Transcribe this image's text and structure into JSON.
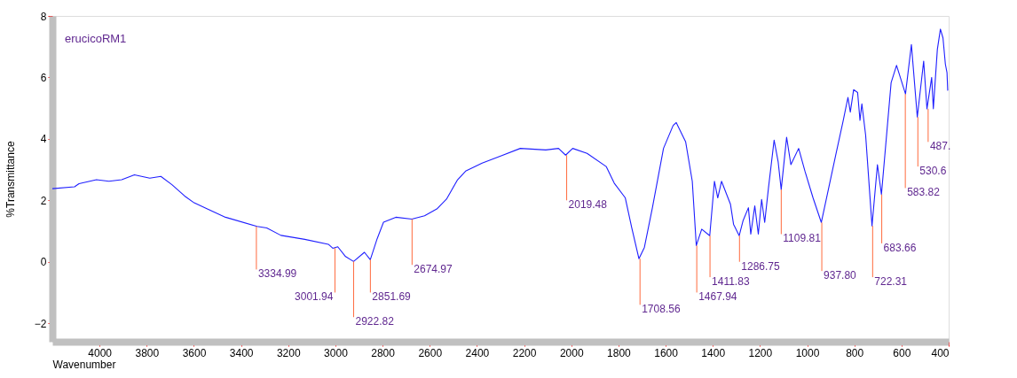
{
  "chart_data": {
    "type": "line",
    "title": "erucicoRM1",
    "xlabel": "Wavenumber",
    "ylabel": "%Transmittance",
    "xlim": [
      4200,
      400
    ],
    "xticks": [
      4000,
      3800,
      3600,
      3400,
      3200,
      3000,
      2800,
      2600,
      2400,
      2200,
      2000,
      1800,
      1600,
      1400,
      1200,
      1000,
      800,
      600,
      400
    ],
    "ylim": [
      -2.6,
      8
    ],
    "yticks": [
      -2,
      0,
      2,
      4,
      6,
      8
    ],
    "grid": false,
    "marker": "none",
    "line_style": "solid",
    "series": [
      {
        "color": "#1f1fff",
        "x": [
          4200,
          4106,
          4087,
          4013,
          3960,
          3906,
          3852,
          3787,
          3740,
          3693,
          3639,
          3599,
          3545,
          3466,
          3332,
          3291,
          3231,
          3130,
          3030,
          3011,
          2990,
          2957,
          2923,
          2877,
          2852,
          2823,
          2796,
          2744,
          2676,
          2622,
          2570,
          2529,
          2482,
          2448,
          2378,
          2297,
          2216,
          2108,
          2054,
          2024,
          1994,
          1933,
          1852,
          1818,
          1771,
          1744,
          1713,
          1690,
          1656,
          1609,
          1568,
          1555,
          1515,
          1487,
          1470,
          1447,
          1413,
          1393,
          1379,
          1363,
          1325,
          1312,
          1288,
          1272,
          1249,
          1239,
          1222,
          1207,
          1193,
          1180,
          1164,
          1140,
          1123,
          1110,
          1087,
          1069,
          1036,
          1009,
          975,
          940,
          879,
          847,
          827,
          817,
          803,
          786,
          776,
          768,
          752,
          725,
          702,
          685,
          644,
          621,
          583,
          558,
          533,
          506,
          492,
          472,
          465,
          448,
          435,
          424,
          414,
          407,
          404
        ],
        "values": [
          2.38,
          2.44,
          2.54,
          2.67,
          2.62,
          2.67,
          2.83,
          2.72,
          2.78,
          2.51,
          2.14,
          1.92,
          1.73,
          1.45,
          1.15,
          1.1,
          0.86,
          0.73,
          0.57,
          0.44,
          0.49,
          0.17,
          0.01,
          0.31,
          0.07,
          0.75,
          1.29,
          1.45,
          1.39,
          1.5,
          1.72,
          2.04,
          2.67,
          2.95,
          3.21,
          3.45,
          3.69,
          3.64,
          3.69,
          3.47,
          3.69,
          3.53,
          3.1,
          2.56,
          2.08,
          1.12,
          0.1,
          0.47,
          1.76,
          3.69,
          4.44,
          4.53,
          3.9,
          2.62,
          0.53,
          1.06,
          0.85,
          2.62,
          2.08,
          2.62,
          1.87,
          1.22,
          0.85,
          1.33,
          1.76,
          0.9,
          1.82,
          0.9,
          2.03,
          1.28,
          2.4,
          3.96,
          3.26,
          2.35,
          4.05,
          3.16,
          3.69,
          2.94,
          2.08,
          1.28,
          3.47,
          4.6,
          5.35,
          4.87,
          5.6,
          5.51,
          4.6,
          5.14,
          4.12,
          1.17,
          3.16,
          2.19,
          5.83,
          6.39,
          5.46,
          7.07,
          4.71,
          6.53,
          4.98,
          6.0,
          4.98,
          6.91,
          7.57,
          7.28,
          6.43,
          6.15,
          5.57
        ]
      }
    ],
    "annotations": [
      {
        "text": "3334.99",
        "x": 3334.99,
        "y": 1.15
      },
      {
        "text": "3001.94",
        "x": 3001.94,
        "y": 0.45
      },
      {
        "text": "2922.82",
        "x": 2922.82,
        "y": 0.01
      },
      {
        "text": "2851.69",
        "x": 2851.69,
        "y": 0.07
      },
      {
        "text": "2674.97",
        "x": 2674.97,
        "y": 1.39
      },
      {
        "text": "2019.48",
        "x": 2019.48,
        "y": 3.47
      },
      {
        "text": "1708.56",
        "x": 1708.56,
        "y": 0.1
      },
      {
        "text": "1467.94",
        "x": 1467.94,
        "y": 0.53
      },
      {
        "text": "1411.83",
        "x": 1411.83,
        "y": 0.85
      },
      {
        "text": "1286.75",
        "x": 1286.75,
        "y": 0.85
      },
      {
        "text": "1109.81",
        "x": 1109.81,
        "y": 2.35
      },
      {
        "text": "937.80",
        "x": 937.8,
        "y": 1.28
      },
      {
        "text": "722.31",
        "x": 722.31,
        "y": 1.17
      },
      {
        "text": "683.66",
        "x": 683.66,
        "y": 2.19
      },
      {
        "text": "583.82",
        "x": 583.82,
        "y": 5.46
      },
      {
        "text": "530.6",
        "x": 530.6,
        "y": 4.71
      },
      {
        "text": "487.",
        "x": 487.0,
        "y": 4.98
      }
    ]
  }
}
